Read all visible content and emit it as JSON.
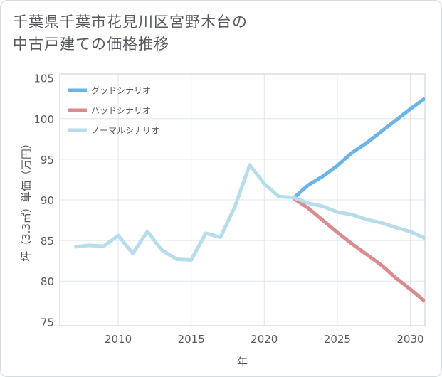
{
  "title_lines": [
    "千葉県千葉市花見川区宮野木台の",
    "中古戸建ての価格推移"
  ],
  "chart_data": {
    "type": "line",
    "title": "千葉県千葉市花見川区宮野木台の中古戸建ての価格推移",
    "xlabel": "年",
    "ylabel": "坪（3.3㎡）単価（万円）",
    "xlim": [
      2006,
      2031
    ],
    "ylim": [
      74.5,
      105.5
    ],
    "x_ticks": [
      2010,
      2015,
      2020,
      2025,
      2030
    ],
    "y_ticks": [
      75,
      80,
      85,
      90,
      95,
      100,
      105
    ],
    "grid": true,
    "legend_position": "top-left",
    "series": [
      {
        "name": "グッドシナリオ",
        "color": "#6ab4ea",
        "x": [
          2022,
          2023,
          2024,
          2025,
          2026,
          2027,
          2028,
          2029,
          2030,
          2031
        ],
        "values": [
          90.2,
          91.8,
          92.9,
          94.2,
          95.8,
          97.0,
          98.4,
          99.8,
          101.2,
          102.5
        ]
      },
      {
        "name": "バッドシナリオ",
        "color": "#d98b90",
        "x": [
          2022,
          2023,
          2024,
          2025,
          2026,
          2027,
          2028,
          2029,
          2030,
          2031
        ],
        "values": [
          90.2,
          89.0,
          87.5,
          86.0,
          84.6,
          83.3,
          82.0,
          80.4,
          79.0,
          77.5
        ]
      },
      {
        "name": "ノーマルシナリオ",
        "color": "#b7dcea",
        "x": [
          2007,
          2008,
          2009,
          2010,
          2011,
          2012,
          2013,
          2014,
          2015,
          2016,
          2017,
          2018,
          2019,
          2020,
          2021,
          2022,
          2023,
          2024,
          2025,
          2026,
          2027,
          2028,
          2029,
          2030,
          2031
        ],
        "values": [
          84.2,
          84.4,
          84.3,
          85.6,
          83.4,
          86.1,
          83.8,
          82.7,
          82.6,
          85.9,
          85.4,
          89.2,
          94.3,
          92.0,
          90.4,
          90.3,
          89.6,
          89.2,
          88.5,
          88.2,
          87.6,
          87.2,
          86.6,
          86.1,
          85.3
        ]
      }
    ]
  }
}
